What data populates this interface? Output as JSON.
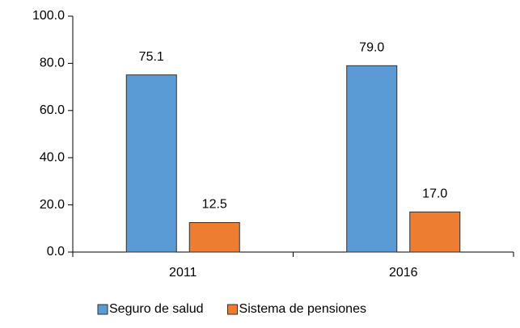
{
  "chart_data": {
    "type": "bar",
    "categories": [
      "2011",
      "2016"
    ],
    "series": [
      {
        "name": "Seguro de salud",
        "color": "#5b9bd5",
        "values": [
          75.1,
          79.0
        ],
        "value_labels": [
          "75.1",
          "79.0"
        ]
      },
      {
        "name": "Sistema de pensiones",
        "color": "#ed7d31",
        "values": [
          12.5,
          17.0
        ],
        "value_labels": [
          "12.5",
          "17.0"
        ]
      }
    ],
    "ylim": [
      0,
      100
    ],
    "yticks": [
      {
        "value": 0,
        "label": "0.0"
      },
      {
        "value": 20,
        "label": "20.0"
      },
      {
        "value": 40,
        "label": "40.0"
      },
      {
        "value": 60,
        "label": "60.0"
      },
      {
        "value": 80,
        "label": "80.0"
      },
      {
        "value": 100,
        "label": "100.0"
      }
    ],
    "grid": false,
    "legend": "bottom"
  }
}
